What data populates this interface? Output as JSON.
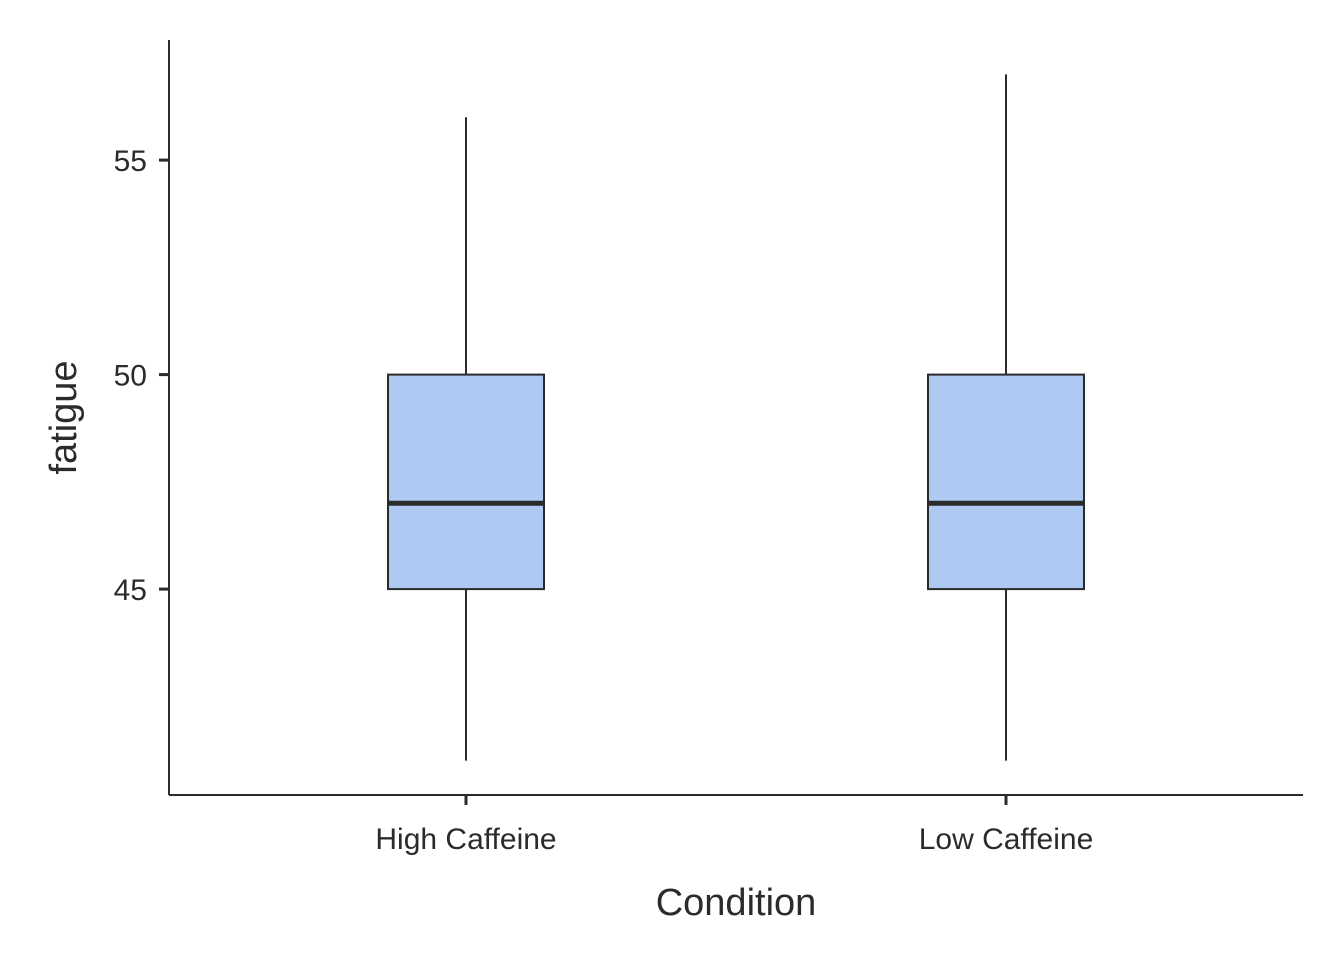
{
  "chart_data": {
    "type": "boxplot",
    "title": "",
    "xlabel": "Condition",
    "ylabel": "fatigue",
    "categories": [
      "High Caffeine",
      "Low Caffeine"
    ],
    "boxes": [
      {
        "category": "High Caffeine",
        "whisker_low": 41,
        "q1": 45,
        "median": 47,
        "q3": 50,
        "whisker_high": 56
      },
      {
        "category": "Low Caffeine",
        "whisker_low": 41,
        "q1": 45,
        "median": 47,
        "q3": 50,
        "whisker_high": 57
      }
    ],
    "y_ticks": [
      45,
      50,
      55
    ],
    "ylim": [
      40.2,
      57.8
    ],
    "grid": false,
    "box_fill": "#aecaf2",
    "line_color": "#2b2b2b"
  }
}
